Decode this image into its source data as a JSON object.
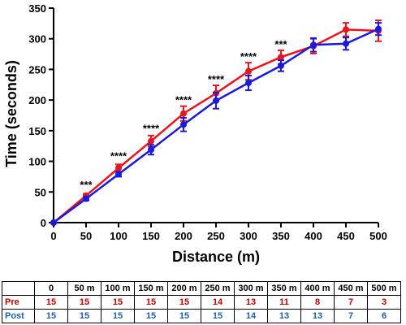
{
  "chart_data": {
    "type": "line",
    "xlabel": "Distance (m)",
    "ylabel": "Time (seconds)",
    "xlim": [
      0,
      500
    ],
    "ylim": [
      0,
      350
    ],
    "xticks": [
      0,
      50,
      100,
      150,
      200,
      250,
      300,
      350,
      400,
      450,
      500
    ],
    "yticks": [
      0,
      50,
      100,
      150,
      200,
      250,
      300,
      350
    ],
    "grid": false,
    "x": [
      0,
      50,
      100,
      150,
      200,
      250,
      300,
      350,
      400,
      450,
      500
    ],
    "series": [
      {
        "name": "Pre",
        "color": "#e8141e",
        "values": [
          0,
          44,
          89,
          133,
          178,
          211,
          247,
          270,
          288,
          315,
          313
        ],
        "errors": [
          0,
          3,
          6,
          9,
          12,
          13,
          14,
          11,
          12,
          11,
          17
        ]
      },
      {
        "name": "Post",
        "color": "#1a1adc",
        "values": [
          0,
          39,
          79,
          119,
          160,
          199,
          228,
          256,
          290,
          292,
          316
        ],
        "errors": [
          0,
          3,
          4,
          8,
          11,
          13,
          12,
          9,
          11,
          10,
          10
        ]
      }
    ],
    "annotations": [
      {
        "x": 50,
        "text": "***",
        "y": 56
      },
      {
        "x": 100,
        "text": "****",
        "y": 103
      },
      {
        "x": 150,
        "text": "****",
        "y": 148
      },
      {
        "x": 200,
        "text": "****",
        "y": 194
      },
      {
        "x": 250,
        "text": "****",
        "y": 228
      },
      {
        "x": 300,
        "text": "****",
        "y": 265
      },
      {
        "x": 350,
        "text": "***",
        "y": 285
      }
    ]
  },
  "table": {
    "headers": [
      "0",
      "50 m",
      "100 m",
      "150 m",
      "200 m",
      "250 m",
      "300 m",
      "350 m",
      "400 m",
      "450 m",
      "500 m"
    ],
    "rows": [
      {
        "label": "Pre",
        "values": [
          "15",
          "15",
          "15",
          "15",
          "15",
          "14",
          "13",
          "11",
          "8",
          "7",
          "3"
        ]
      },
      {
        "label": "Post",
        "values": [
          "15",
          "15",
          "15",
          "15",
          "15",
          "15",
          "14",
          "13",
          "13",
          "7",
          "6"
        ]
      }
    ]
  }
}
